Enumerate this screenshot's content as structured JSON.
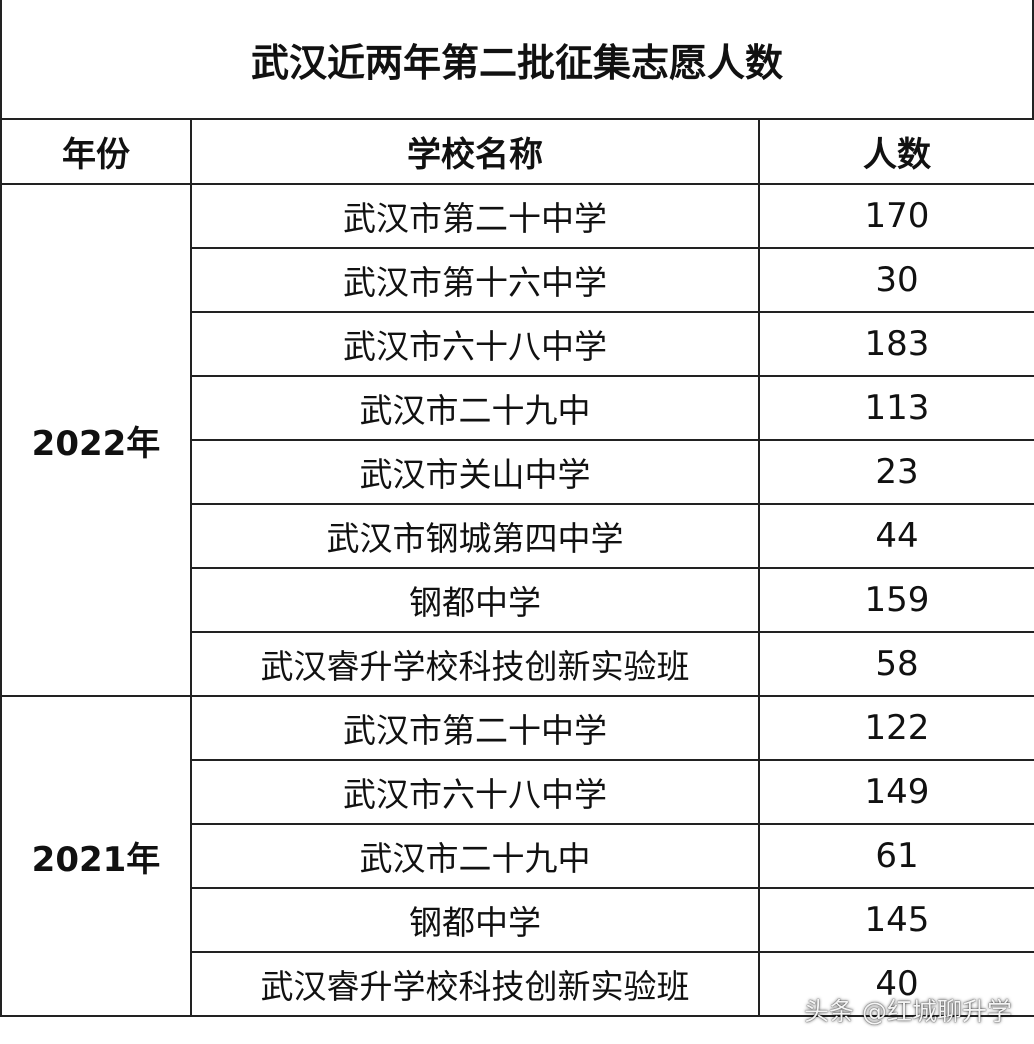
{
  "title": "武汉近两年第二批征集志愿人数",
  "headers": {
    "year": "年份",
    "school": "学校名称",
    "count": "人数"
  },
  "groups": [
    {
      "year": "2022年",
      "rows": [
        {
          "school": "武汉市第二十中学",
          "count": "170"
        },
        {
          "school": "武汉市第十六中学",
          "count": "30"
        },
        {
          "school": "武汉市六十八中学",
          "count": "183"
        },
        {
          "school": "武汉市二十九中",
          "count": "113"
        },
        {
          "school": "武汉市关山中学",
          "count": "23"
        },
        {
          "school": "武汉市钢城第四中学",
          "count": "44"
        },
        {
          "school": "钢都中学",
          "count": "159"
        },
        {
          "school": "武汉睿升学校科技创新实验班",
          "count": "58"
        }
      ]
    },
    {
      "year": "2021年",
      "rows": [
        {
          "school": "武汉市第二十中学",
          "count": "122"
        },
        {
          "school": "武汉市六十八中学",
          "count": "149"
        },
        {
          "school": "武汉市二十九中",
          "count": "61"
        },
        {
          "school": "钢都中学",
          "count": "145"
        },
        {
          "school": "武汉睿升学校科技创新实验班",
          "count": "40"
        }
      ]
    }
  ],
  "watermark": "头条 @红城聊升学"
}
